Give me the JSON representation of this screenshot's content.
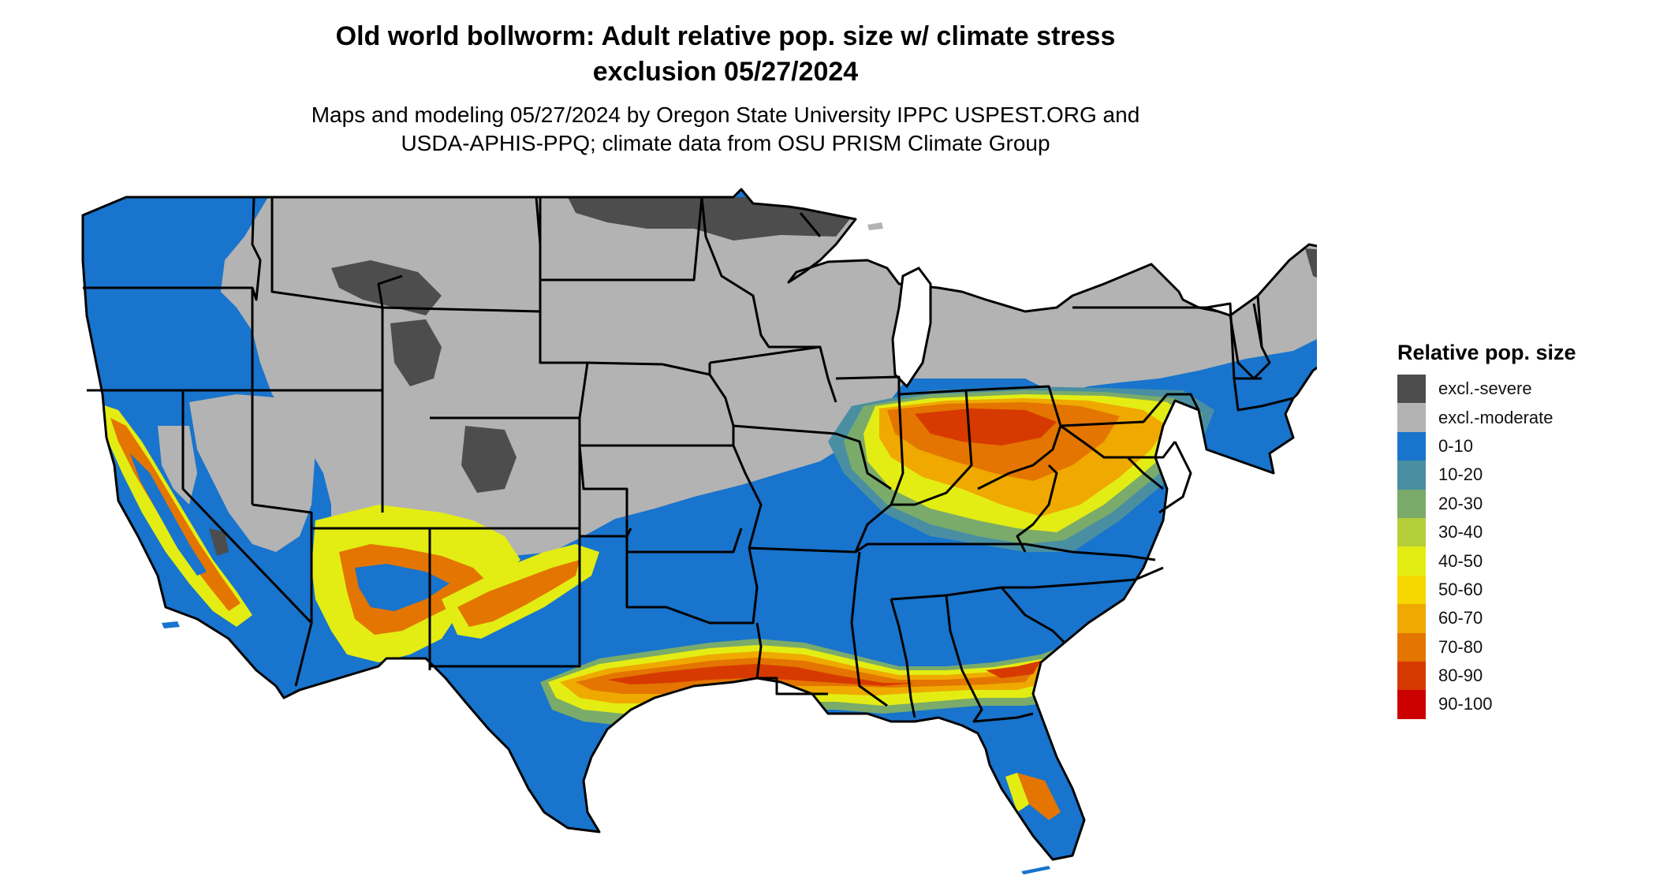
{
  "title": {
    "line1": "Old world bollworm: Adult relative pop. size w/ climate stress",
    "line2": "exclusion 05/27/2024"
  },
  "subtitle": {
    "line1": "Maps and modeling 05/27/2024 by Oregon State University IPPC USPEST.ORG and",
    "line2": "USDA-APHIS-PPQ; climate data from OSU PRISM Climate Group"
  },
  "legend": {
    "title": "Relative pop. size",
    "items": [
      {
        "label": "excl.-severe",
        "color": "#4d4d4d"
      },
      {
        "label": "excl.-moderate",
        "color": "#b3b3b3"
      },
      {
        "label": "0-10",
        "color": "#1874cd"
      },
      {
        "label": "10-20",
        "color": "#4a8fa1"
      },
      {
        "label": "20-30",
        "color": "#7aab6a"
      },
      {
        "label": "30-40",
        "color": "#b4cf3a"
      },
      {
        "label": "40-50",
        "color": "#e3ed13"
      },
      {
        "label": "50-60",
        "color": "#f7d700"
      },
      {
        "label": "60-70",
        "color": "#efa900"
      },
      {
        "label": "70-80",
        "color": "#e37500"
      },
      {
        "label": "80-90",
        "color": "#d73a00"
      },
      {
        "label": "90-100",
        "color": "#cd0000"
      }
    ]
  }
}
